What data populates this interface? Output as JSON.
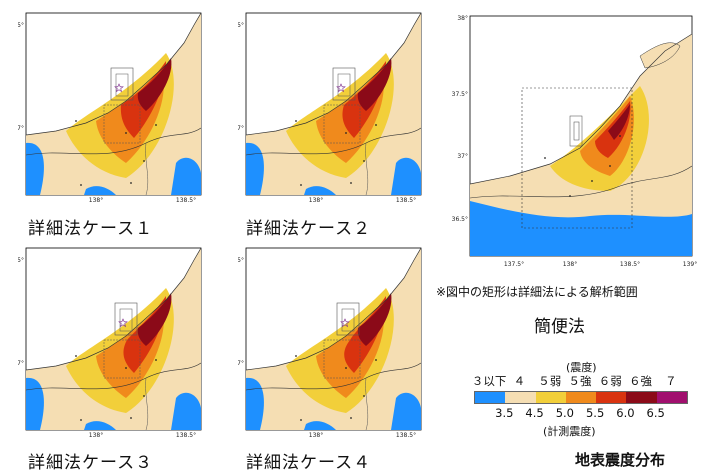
{
  "panels": [
    {
      "caption": "詳細法ケース１",
      "lat_ticks": [
        "37.5°",
        "37°"
      ],
      "lon_ticks": [
        "138°",
        "138.5°"
      ]
    },
    {
      "caption": "詳細法ケース２",
      "lat_ticks": [
        "37.5°",
        "37°"
      ],
      "lon_ticks": [
        "138°",
        "138.5°"
      ]
    },
    {
      "caption": "詳細法ケース３",
      "lat_ticks": [
        "37.5°",
        "37°"
      ],
      "lon_ticks": [
        "138°",
        "138.5°"
      ]
    },
    {
      "caption": "詳細法ケース４",
      "lat_ticks": [
        "37.5°",
        "37°"
      ],
      "lon_ticks": [
        "138°",
        "138.5°"
      ]
    }
  ],
  "overview": {
    "lat_ticks": [
      "38°",
      "37.5°",
      "37°",
      "36.5°"
    ],
    "lon_ticks": [
      "137.5°",
      "138°",
      "138.5°",
      "139°"
    ]
  },
  "note": "※図中の矩形は詳細法による解析範囲",
  "method_label": "簡便法",
  "legend": {
    "title": "(震度)",
    "classes": [
      "３以下",
      "４",
      "５弱",
      "５強",
      "６弱",
      "６強",
      "７"
    ],
    "values": [
      "3.5",
      "4.5",
      "5.0",
      "5.5",
      "6.0",
      "6.5"
    ],
    "subtitle": "(計測震度)",
    "colors": [
      "#1e90ff",
      "#f5deb3",
      "#f2cf3a",
      "#f08a1c",
      "#d9330f",
      "#8b0a18",
      "#a10f6e"
    ]
  },
  "main_title": "地表震度分布"
}
